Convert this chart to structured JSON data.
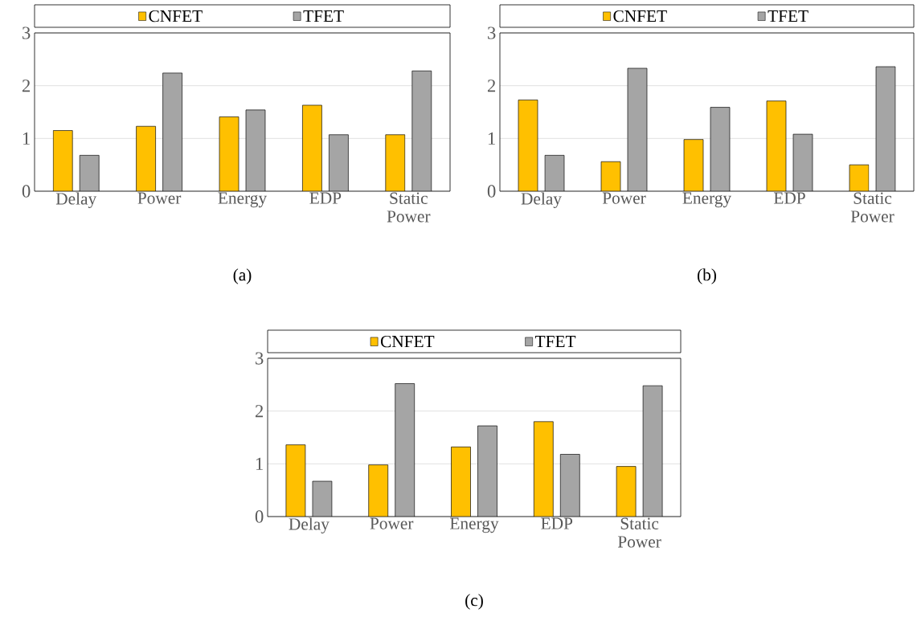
{
  "chart_data": [
    {
      "type": "bar",
      "categories": [
        "Delay",
        "Power",
        "Energy",
        "EDP",
        "Static Power"
      ],
      "ylim": [
        0,
        3
      ],
      "yticks": [
        0,
        1,
        2,
        3
      ],
      "grid": "y",
      "legend": "top",
      "annotations": [
        "(a)"
      ],
      "series": [
        {
          "name": "CNFET",
          "color": "#ffc000",
          "values": [
            1.15,
            1.23,
            1.41,
            1.63,
            1.07
          ]
        },
        {
          "name": "TFET",
          "color": "#a5a5a5",
          "values": [
            0.68,
            2.24,
            1.54,
            1.07,
            2.28
          ]
        }
      ]
    },
    {
      "type": "bar",
      "categories": [
        "Delay",
        "Power",
        "Energy",
        "EDP",
        "Static Power"
      ],
      "ylim": [
        0,
        3
      ],
      "yticks": [
        0,
        1,
        2,
        3
      ],
      "grid": "y",
      "legend": "top",
      "annotations": [
        "(b)"
      ],
      "series": [
        {
          "name": "CNFET",
          "color": "#ffc000",
          "values": [
            1.73,
            0.56,
            0.98,
            1.71,
            0.5
          ]
        },
        {
          "name": "TFET",
          "color": "#a5a5a5",
          "values": [
            0.68,
            2.33,
            1.59,
            1.08,
            2.36
          ]
        }
      ]
    },
    {
      "type": "bar",
      "categories": [
        "Delay",
        "Power",
        "Energy",
        "EDP",
        "Static Power"
      ],
      "ylim": [
        0,
        3
      ],
      "yticks": [
        0,
        1,
        2,
        3
      ],
      "grid": "y",
      "legend": "top",
      "annotations": [
        "(c)"
      ],
      "series": [
        {
          "name": "CNFET",
          "color": "#ffc000",
          "values": [
            1.36,
            0.98,
            1.32,
            1.8,
            0.95
          ]
        },
        {
          "name": "TFET",
          "color": "#a5a5a5",
          "values": [
            0.67,
            2.52,
            1.72,
            1.18,
            2.48
          ]
        }
      ]
    }
  ]
}
